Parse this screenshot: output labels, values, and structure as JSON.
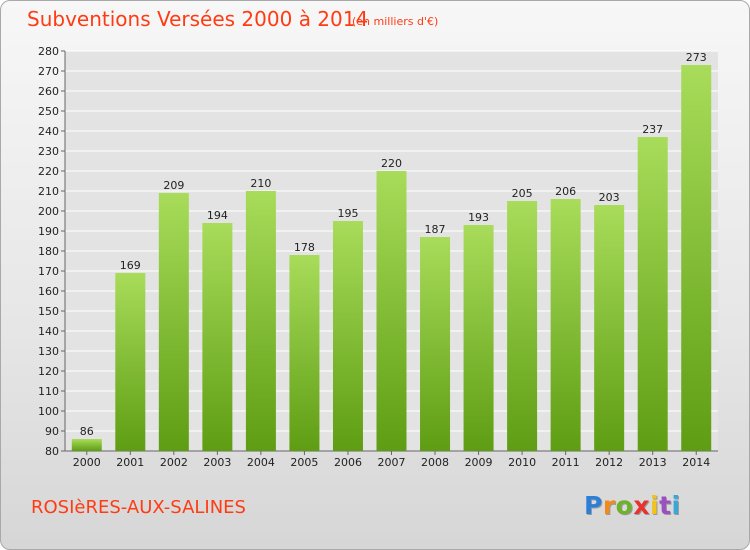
{
  "chart_data": {
    "type": "bar",
    "title": "Subventions Versées 2000 à 2014",
    "unit_note": "(en milliers d'€)",
    "categories": [
      "2000",
      "2001",
      "2002",
      "2003",
      "2004",
      "2005",
      "2006",
      "2007",
      "2008",
      "2009",
      "2010",
      "2011",
      "2012",
      "2013",
      "2014"
    ],
    "values": [
      86,
      169,
      209,
      194,
      210,
      178,
      195,
      220,
      187,
      193,
      205,
      206,
      203,
      237,
      273
    ],
    "ylim": [
      80,
      280
    ],
    "y_ticks": [
      80,
      90,
      100,
      110,
      120,
      130,
      140,
      150,
      160,
      170,
      180,
      190,
      200,
      210,
      220,
      230,
      240,
      250,
      260,
      270,
      280
    ],
    "grid": true,
    "colors": {
      "bar_light": "#a8dc5a",
      "bar_dark": "#5e9d13",
      "text_accent": "#ff3b14",
      "grid": "#ffffff"
    }
  },
  "footer": {
    "commune": "ROSIèRES-AUX-SALINES",
    "logo_letters": [
      "P",
      "r",
      "o",
      "x",
      "i",
      "t",
      "i"
    ],
    "logo_colors": [
      "#2c7fd6",
      "#f08a1c",
      "#6cb22c",
      "#e8322e",
      "#f2c31b",
      "#9a4fc2",
      "#3aa6d9"
    ]
  }
}
